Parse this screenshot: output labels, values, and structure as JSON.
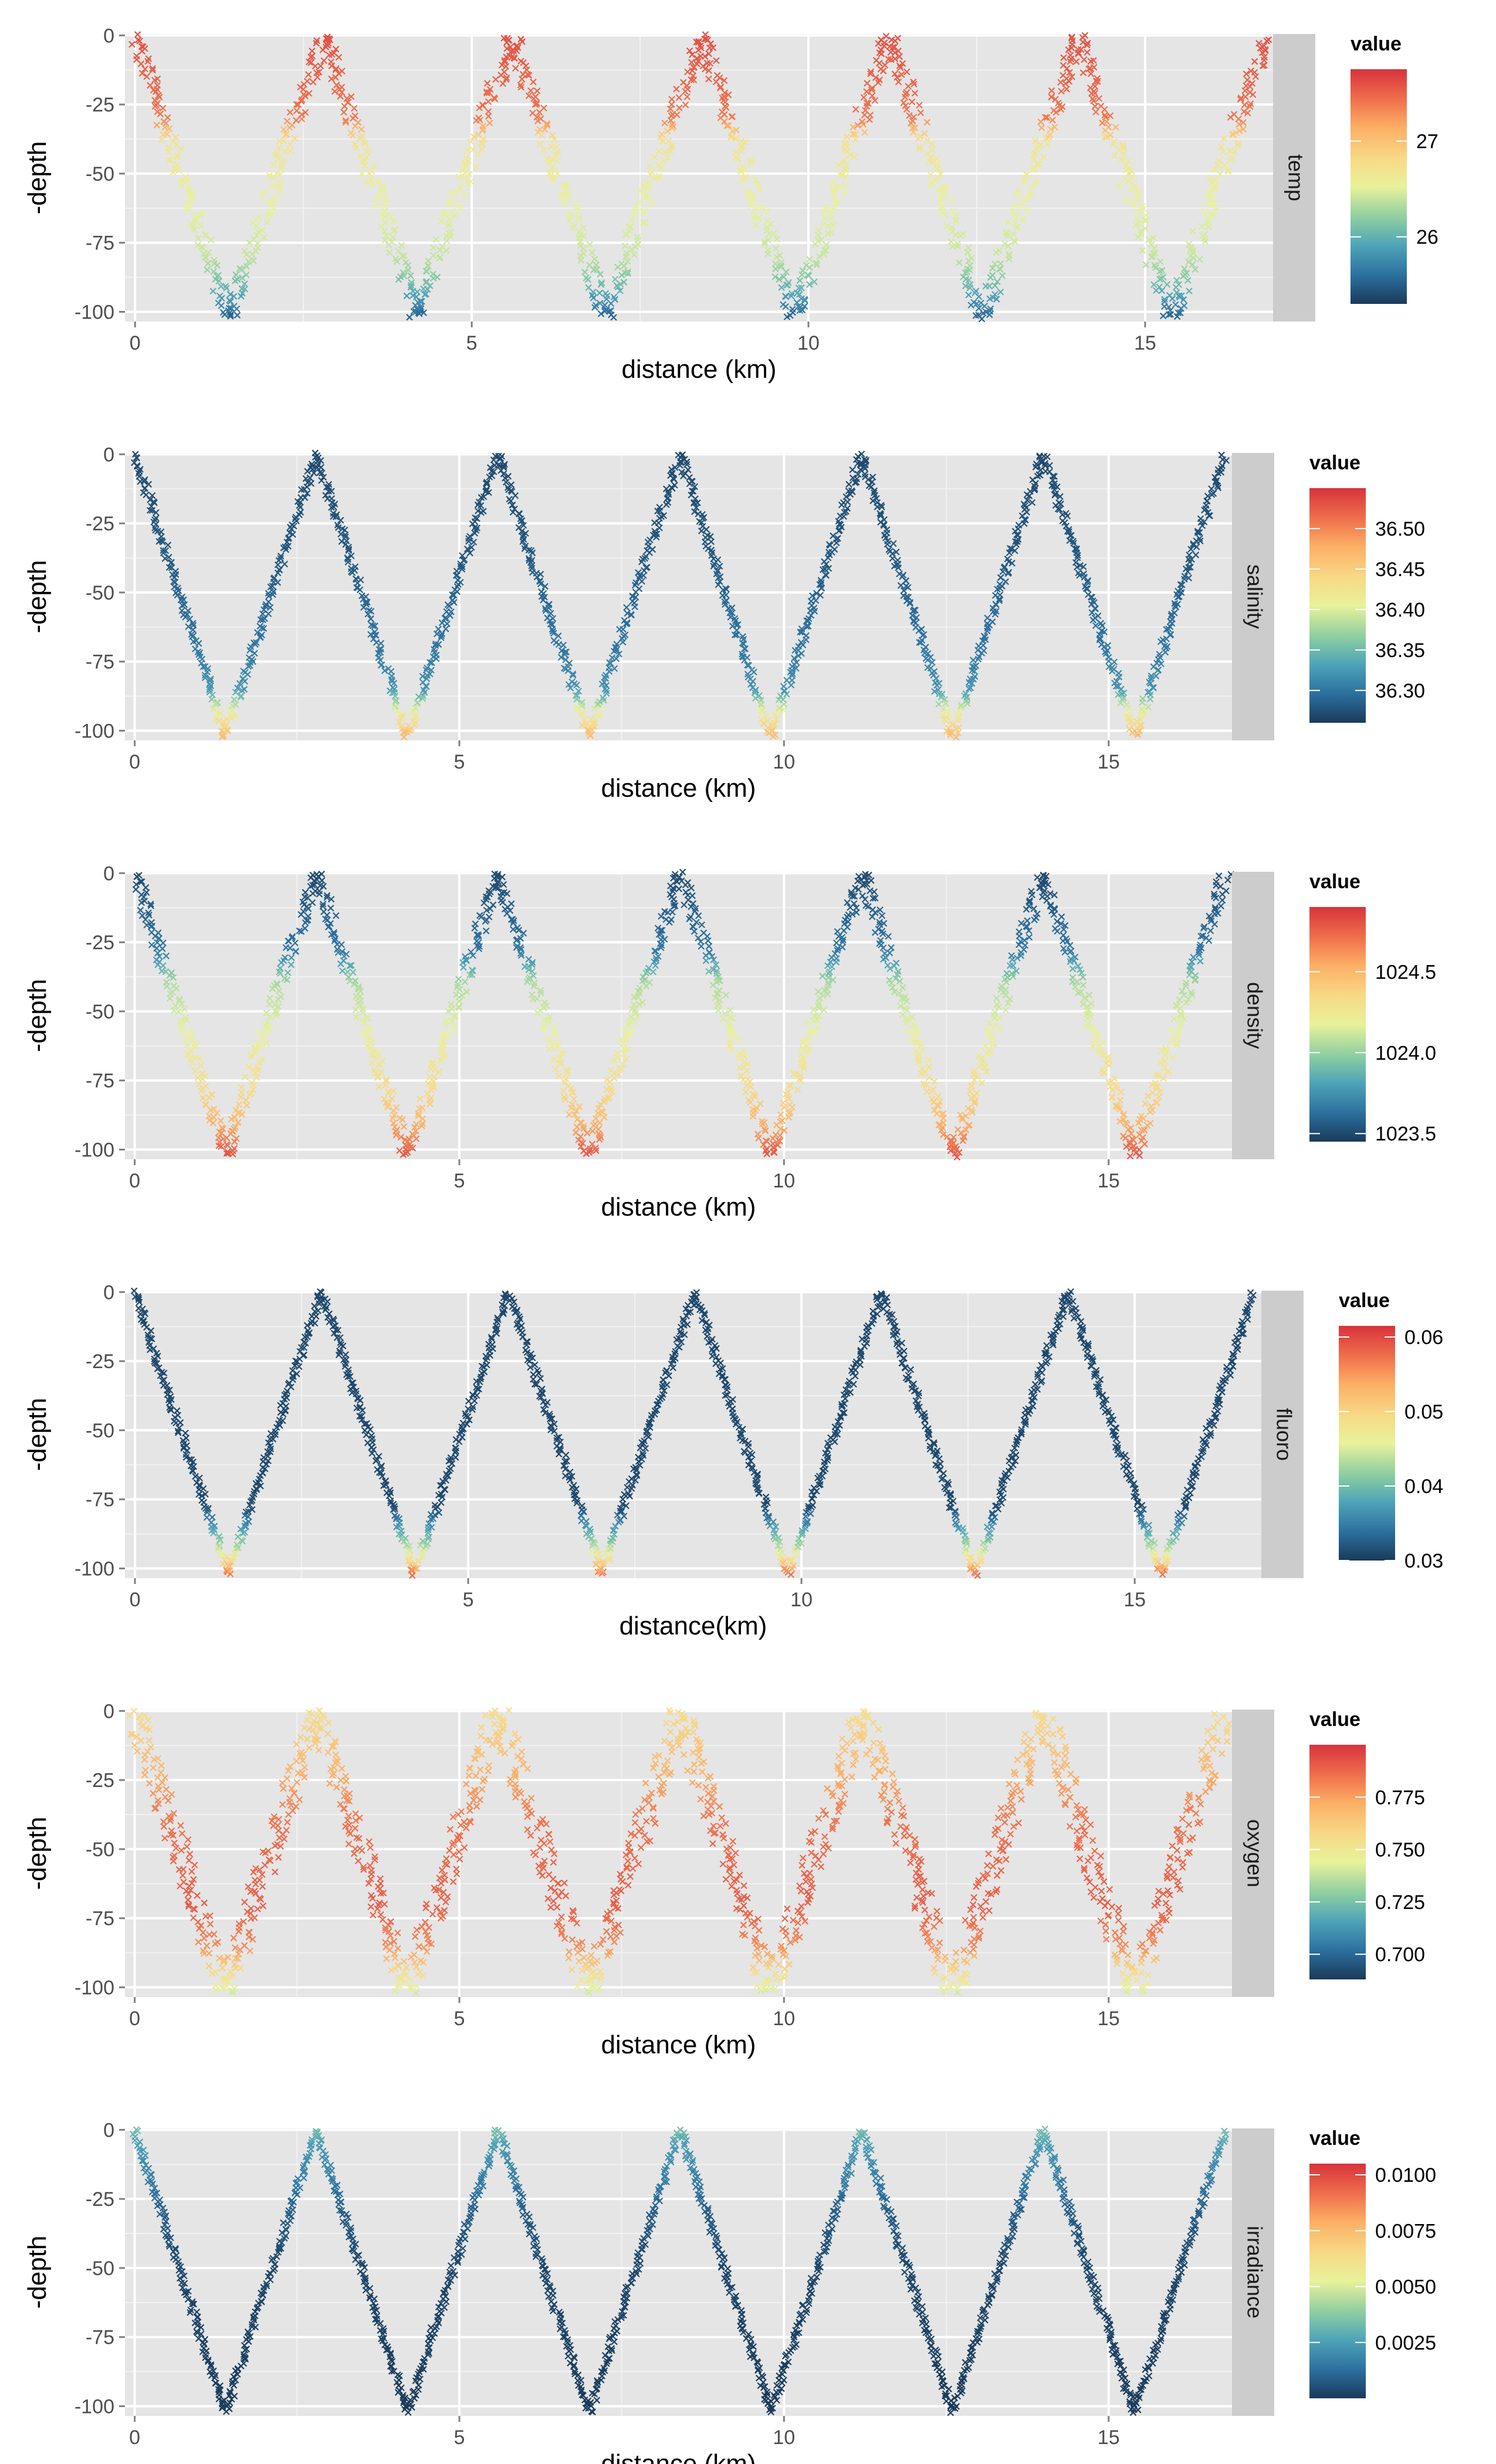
{
  "chart_data": [
    {
      "type": "scatter",
      "facet_label": "temp",
      "xlabel": "distance (km)",
      "ylabel": "-depth",
      "xlim": [
        -0.15,
        16.9
      ],
      "ylim": [
        -103.5,
        0.5
      ],
      "x_ticks": [
        0,
        5,
        10,
        15
      ],
      "y_ticks": [
        0,
        -25,
        -50,
        -75,
        -100
      ],
      "legend": {
        "title": "value",
        "position": "right",
        "range": [
          25.3,
          27.75
        ],
        "ticks": [
          27,
          26
        ],
        "tick_labels": [
          "27",
          "26"
        ]
      },
      "track": {
        "period_km": 2.8,
        "trough_km": 1.4,
        "max_depth": 102,
        "end_km": 16.8
      },
      "profile": [
        [
          0,
          27.6
        ],
        [
          30,
          27.4
        ],
        [
          38,
          26.7
        ],
        [
          80,
          26.4
        ],
        [
          92,
          26.0
        ],
        [
          102,
          25.5
        ]
      ],
      "band_width_km": 0.25
    },
    {
      "type": "scatter",
      "facet_label": "salinity",
      "xlabel": "distance (km)",
      "ylabel": "-depth",
      "xlim": [
        -0.15,
        16.9
      ],
      "ylim": [
        -103.5,
        0.5
      ],
      "x_ticks": [
        0,
        5,
        10,
        15
      ],
      "y_ticks": [
        0,
        -25,
        -50,
        -75,
        -100
      ],
      "legend": {
        "title": "value",
        "position": "right",
        "range": [
          36.26,
          36.55
        ],
        "ticks": [
          36.5,
          36.45,
          36.4,
          36.35,
          36.3
        ],
        "tick_labels": [
          "36.50",
          "36.45",
          "36.40",
          "36.35",
          "36.30"
        ]
      },
      "track": {
        "period_km": 2.8,
        "trough_km": 1.4,
        "max_depth": 102,
        "end_km": 16.8
      },
      "profile": [
        [
          0,
          36.27
        ],
        [
          40,
          36.28
        ],
        [
          70,
          36.3
        ],
        [
          85,
          36.32
        ],
        [
          92,
          36.4
        ],
        [
          102,
          36.47
        ]
      ],
      "band_width_km": 0.12
    },
    {
      "type": "scatter",
      "facet_label": "density",
      "xlabel": "distance (km)",
      "ylabel": "-depth",
      "xlim": [
        -0.15,
        16.9
      ],
      "ylim": [
        -103.5,
        0.5
      ],
      "x_ticks": [
        0,
        5,
        10,
        15
      ],
      "y_ticks": [
        0,
        -25,
        -50,
        -75,
        -100
      ],
      "legend": {
        "title": "value",
        "position": "right",
        "range": [
          1023.45,
          1024.9
        ],
        "ticks": [
          1024.5,
          1024.0,
          1023.5
        ],
        "tick_labels": [
          "1024.5",
          "1024.0",
          "1023.5"
        ]
      },
      "track": {
        "period_km": 2.8,
        "trough_km": 1.4,
        "max_depth": 102,
        "end_km": 16.8
      },
      "profile": [
        [
          0,
          1023.5
        ],
        [
          28,
          1023.65
        ],
        [
          40,
          1024.05
        ],
        [
          60,
          1024.2
        ],
        [
          80,
          1024.35
        ],
        [
          92,
          1024.55
        ],
        [
          102,
          1024.8
        ]
      ],
      "band_width_km": 0.2
    },
    {
      "type": "scatter",
      "facet_label": "fluoro",
      "xlabel": "distance(km)",
      "ylabel": "-depth",
      "xlim": [
        -0.15,
        16.9
      ],
      "ylim": [
        -103.5,
        0.5
      ],
      "x_ticks": [
        0,
        5,
        10,
        15
      ],
      "y_ticks": [
        0,
        -25,
        -50,
        -75,
        -100
      ],
      "legend": {
        "title": "value",
        "position": "right",
        "range": [
          0.03,
          0.0615
        ],
        "ticks": [
          0.06,
          0.05,
          0.04,
          0.03
        ],
        "tick_labels": [
          "0.06",
          "0.05",
          "0.04",
          "0.03"
        ]
      },
      "track": {
        "period_km": 2.8,
        "trough_km": 1.4,
        "max_depth": 102,
        "end_km": 16.8
      },
      "profile": [
        [
          0,
          0.031
        ],
        [
          78,
          0.031
        ],
        [
          85,
          0.037
        ],
        [
          92,
          0.043
        ],
        [
          98,
          0.05
        ],
        [
          102,
          0.058
        ]
      ],
      "band_width_km": 0.1
    },
    {
      "type": "scatter",
      "facet_label": "oxygen",
      "xlabel": "distance (km)",
      "ylabel": "-depth",
      "xlim": [
        -0.15,
        16.9
      ],
      "ylim": [
        -103.5,
        0.5
      ],
      "x_ticks": [
        0,
        5,
        10,
        15
      ],
      "y_ticks": [
        0,
        -25,
        -50,
        -75,
        -100
      ],
      "legend": {
        "title": "value",
        "position": "right",
        "range": [
          0.688,
          0.8
        ],
        "ticks": [
          0.775,
          0.75,
          0.725,
          0.7
        ],
        "tick_labels": [
          "0.775",
          "0.750",
          "0.725",
          "0.700"
        ]
      },
      "track": {
        "period_km": 2.8,
        "trough_km": 1.4,
        "max_depth": 102,
        "end_km": 16.8
      },
      "profile": [
        [
          0,
          0.755
        ],
        [
          20,
          0.77
        ],
        [
          40,
          0.785
        ],
        [
          70,
          0.79
        ],
        [
          85,
          0.78
        ],
        [
          95,
          0.755
        ],
        [
          102,
          0.74
        ]
      ],
      "band_width_km": 0.35
    },
    {
      "type": "scatter",
      "facet_label": "irradiance",
      "xlabel": "distance (km)",
      "ylabel": "-depth",
      "xlim": [
        -0.15,
        16.9
      ],
      "ylim": [
        -103.5,
        0.5
      ],
      "x_ticks": [
        0,
        5,
        10,
        15
      ],
      "y_ticks": [
        0,
        -25,
        -50,
        -75,
        -100
      ],
      "legend": {
        "title": "value",
        "position": "right",
        "range": [
          0.0,
          0.0105
        ],
        "ticks": [
          0.01,
          0.0075,
          0.005,
          0.0025
        ],
        "tick_labels": [
          "0.0100",
          "0.0075",
          "0.0050",
          "0.0025"
        ]
      },
      "track": {
        "period_km": 2.8,
        "trough_km": 1.4,
        "max_depth": 102,
        "end_km": 16.8
      },
      "profile": [
        [
          0,
          0.0035
        ],
        [
          5,
          0.0025
        ],
        [
          15,
          0.0018
        ],
        [
          30,
          0.0008
        ],
        [
          50,
          0.0003
        ],
        [
          102,
          0.0
        ]
      ],
      "band_width_km": 0.1
    }
  ]
}
